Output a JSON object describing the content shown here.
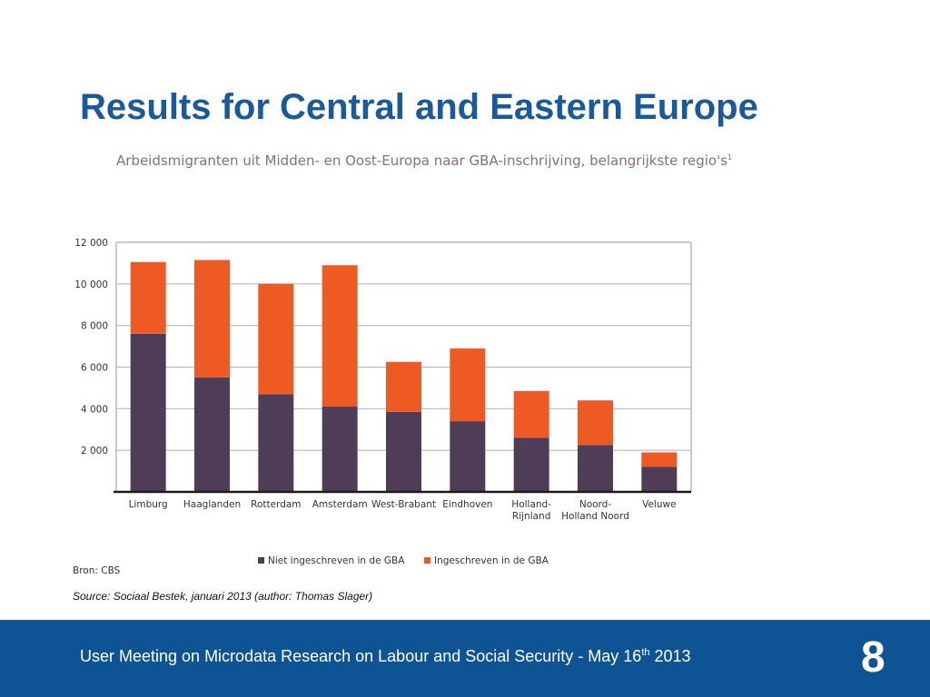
{
  "slide": {
    "title": "Results for Central and Eastern Europe",
    "source": "Source: Sociaal Bestek, januari 2013 (author: Thomas Slager)"
  },
  "footer": {
    "text_before_sup": "User Meeting on Microdata Research on Labour and Social Security - May 16",
    "sup": "th",
    "text_after_sup": " 2013",
    "page_number": "8"
  },
  "chart_data": {
    "type": "bar",
    "stacked": true,
    "title": "Arbeidsmigranten uit Midden- en Oost-Europa naar GBA-inschrijving, belangrijkste regio's",
    "title_footnote": "1",
    "categories": [
      "Limburg",
      "Haaglanden",
      "Rotterdam",
      "Amsterdam",
      "West-Brabant",
      "Eindhoven",
      "Holland-Rijnland",
      "Noord-Holland Noord",
      "Veluwe"
    ],
    "category_lines": [
      [
        "Limburg"
      ],
      [
        "Haaglanden"
      ],
      [
        "Rotterdam"
      ],
      [
        "Amsterdam"
      ],
      [
        "West-Brabant"
      ],
      [
        "Eindhoven"
      ],
      [
        "Holland-",
        "Rijnland"
      ],
      [
        "Noord-",
        "Holland Noord"
      ],
      [
        "Veluwe"
      ]
    ],
    "series": [
      {
        "name": "Niet ingeschreven in de GBA",
        "color": "#4f3d57",
        "values": [
          7600,
          5500,
          4700,
          4100,
          3850,
          3400,
          2600,
          2250,
          1200
        ]
      },
      {
        "name": "Ingeschreven in de GBA",
        "color": "#ee5a24",
        "values": [
          3450,
          5650,
          5300,
          6800,
          2400,
          3500,
          2250,
          2150,
          700
        ]
      }
    ],
    "ylim": [
      0,
      12000
    ],
    "yticks": [
      2000,
      4000,
      6000,
      8000,
      10000,
      12000
    ],
    "ytick_labels": [
      "2 000",
      "4 000",
      "6 000",
      "8 000",
      "10 000",
      "12 000"
    ],
    "grid": true,
    "legend_position": "bottom",
    "source_label": "Bron: CBS"
  }
}
